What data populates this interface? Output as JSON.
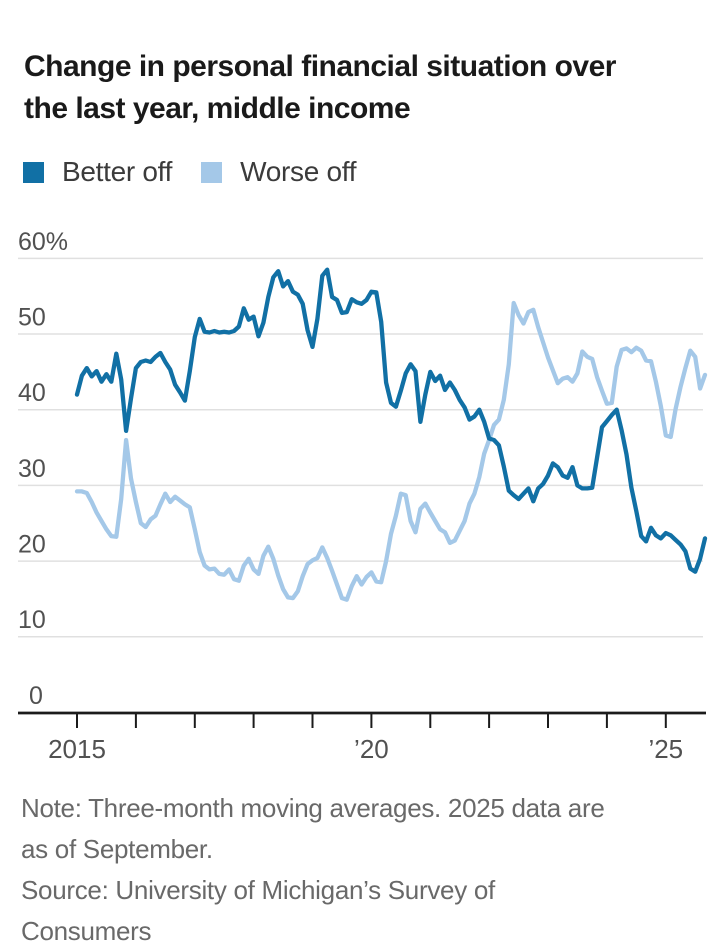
{
  "title": {
    "lines": [
      "Change in personal financial situation over",
      "the last year, middle income"
    ]
  },
  "legend": {
    "items": [
      {
        "label": "Better off",
        "color": "#1170a5"
      },
      {
        "label": "Worse off",
        "color": "#a4c8e8"
      }
    ]
  },
  "footer": {
    "lines": [
      "Note: Three-month moving averages. 2025 data are",
      "as of September.",
      "Source: University of Michigan’s Survey of",
      "Consumers"
    ]
  },
  "colors": {
    "better_off": "#1170a5",
    "worse_off": "#a4c8e8",
    "gridline": "#e0e0e0",
    "axis": "#1b1b1b",
    "axis_label": "#515151",
    "title_text": "#1a1a1a",
    "footer_text": "#696969",
    "background": "#ffffff"
  },
  "chart_data": {
    "type": "line",
    "title": "Change in personal financial situation over the last year, middle income",
    "unit": "%",
    "x_interval": "monthly",
    "x_start": "2015-01",
    "x_end": "2025-09",
    "x_tick_years": [
      2015,
      2016,
      2017,
      2018,
      2019,
      2020,
      2021,
      2022,
      2023,
      2024,
      2025
    ],
    "x_tick_labels": [
      {
        "year": 2015,
        "label": "2015"
      },
      {
        "year": 2020,
        "label": "’20"
      },
      {
        "year": 2025,
        "label": "’25"
      }
    ],
    "y_ticks": [
      {
        "value": 60,
        "label": "60%"
      },
      {
        "value": 50,
        "label": "50"
      },
      {
        "value": 40,
        "label": "40"
      },
      {
        "value": 30,
        "label": "30"
      },
      {
        "value": 20,
        "label": "20"
      },
      {
        "value": 10,
        "label": "10"
      },
      {
        "value": 0,
        "label": "0"
      }
    ],
    "ylim": [
      0,
      63
    ],
    "grid": "horizontal",
    "legend_position": "top-left",
    "series": [
      {
        "name": "Better off",
        "color": "#1170a5",
        "values": [
          42.0,
          44.5,
          45.5,
          44.4,
          45.1,
          43.7,
          44.7,
          43.7,
          47.4,
          44.0,
          37.2,
          41.5,
          45.5,
          46.3,
          46.5,
          46.3,
          47.0,
          47.5,
          46.3,
          45.3,
          43.3,
          42.3,
          41.2,
          45.1,
          49.6,
          52.0,
          50.3,
          50.2,
          50.4,
          50.2,
          50.3,
          50.2,
          50.4,
          51.0,
          53.4,
          51.9,
          52.3,
          49.7,
          51.5,
          54.9,
          57.5,
          58.3,
          56.3,
          57.0,
          55.6,
          55.2,
          54.0,
          50.5,
          48.3,
          52.0,
          57.7,
          58.5,
          54.9,
          54.5,
          52.8,
          52.9,
          54.6,
          54.2,
          54.0,
          54.5,
          55.6,
          55.5,
          51.6,
          43.6,
          40.9,
          40.4,
          42.5,
          44.8,
          46.0,
          45.1,
          38.4,
          42.0,
          45.0,
          43.8,
          44.5,
          42.6,
          43.6,
          42.6,
          41.3,
          40.3,
          38.7,
          39.1,
          40.0,
          38.4,
          36.2,
          36.0,
          35.3,
          32.5,
          29.3,
          28.7,
          28.2,
          28.9,
          29.6,
          27.9,
          29.6,
          30.2,
          31.3,
          32.9,
          32.4,
          31.3,
          31.0,
          32.4,
          30.0,
          29.6,
          29.6,
          29.7,
          33.7,
          37.7,
          38.5,
          39.3,
          40.0,
          37.3,
          34.1,
          29.7,
          26.6,
          23.3,
          22.6,
          24.4,
          23.4,
          23.0,
          23.7,
          23.4,
          22.8,
          22.2,
          21.3,
          19.0,
          18.6,
          20.3,
          23.0
        ]
      },
      {
        "name": "Worse off",
        "color": "#a4c8e8",
        "values": [
          29.2,
          29.2,
          29.0,
          27.8,
          26.4,
          25.3,
          24.2,
          23.3,
          23.2,
          28.2,
          36.0,
          30.9,
          27.8,
          25.0,
          24.5,
          25.5,
          26.0,
          27.5,
          28.9,
          27.8,
          28.5,
          28.0,
          27.5,
          27.1,
          24.2,
          21.2,
          19.4,
          18.9,
          19.0,
          18.3,
          18.2,
          18.9,
          17.6,
          17.4,
          19.4,
          20.3,
          18.9,
          18.3,
          20.7,
          21.9,
          20.3,
          18.1,
          16.3,
          15.2,
          15.1,
          16.0,
          18.0,
          19.6,
          20.1,
          20.4,
          21.8,
          20.4,
          18.7,
          16.9,
          15.1,
          14.9,
          16.7,
          18.0,
          16.9,
          17.9,
          18.5,
          17.3,
          17.2,
          20.0,
          23.6,
          26.0,
          28.9,
          28.7,
          25.3,
          23.8,
          26.9,
          27.6,
          26.4,
          25.3,
          24.2,
          23.8,
          22.4,
          22.7,
          24.0,
          25.3,
          27.6,
          28.9,
          31.1,
          34.2,
          36.0,
          38.0,
          38.7,
          41.3,
          46.0,
          54.1,
          52.5,
          51.4,
          52.9,
          53.2,
          50.9,
          48.9,
          46.9,
          45.2,
          43.5,
          44.1,
          44.3,
          43.7,
          44.8,
          47.7,
          47.0,
          46.7,
          44.3,
          42.5,
          40.8,
          40.9,
          45.7,
          47.9,
          48.1,
          47.6,
          48.2,
          47.8,
          46.5,
          46.4,
          43.7,
          40.5,
          36.6,
          36.4,
          40.1,
          43.0,
          45.5,
          47.8,
          47.0,
          42.8,
          44.6
        ]
      }
    ]
  }
}
